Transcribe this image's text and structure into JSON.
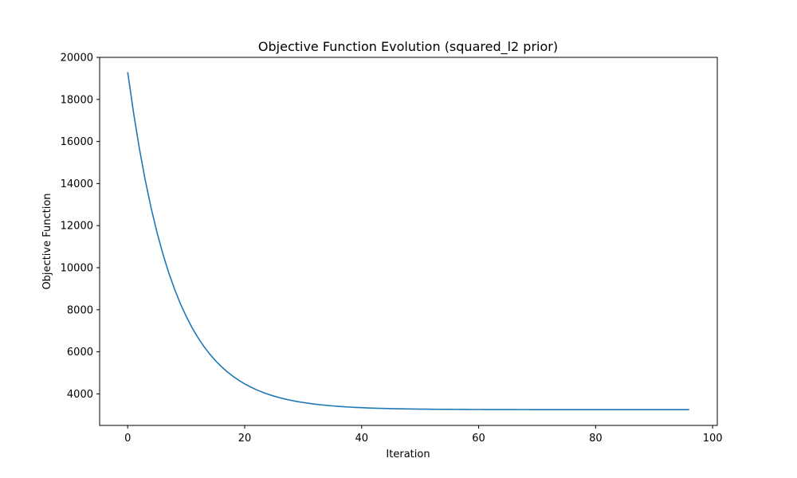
{
  "chart_data": {
    "type": "line",
    "title": "Objective Function Evolution (squared_l2 prior)",
    "xlabel": "Iteration",
    "ylabel": "Objective Function",
    "xlim": [
      -4.8,
      100.8
    ],
    "ylim": [
      2500,
      20000
    ],
    "xticks": [
      0,
      20,
      40,
      60,
      80,
      100
    ],
    "yticks": [
      4000,
      6000,
      8000,
      10000,
      12000,
      14000,
      16000,
      18000,
      20000
    ],
    "xtick_labels": [
      "0",
      "20",
      "40",
      "60",
      "80",
      "100"
    ],
    "ytick_labels": [
      "4000",
      "6000",
      "8000",
      "10000",
      "12000",
      "14000",
      "16000",
      "18000",
      "20000"
    ],
    "grid": false,
    "series": [
      {
        "color": "#1f77b4",
        "model": {
          "form": "exponential_decay",
          "asymptote": 3250,
          "initial": 19300,
          "rate": 0.1286,
          "x_start": 0,
          "x_end": 96,
          "x_step": 1
        }
      }
    ]
  },
  "colors": {
    "line": "#1f77b4",
    "axes": "#000000",
    "background": "#ffffff"
  }
}
